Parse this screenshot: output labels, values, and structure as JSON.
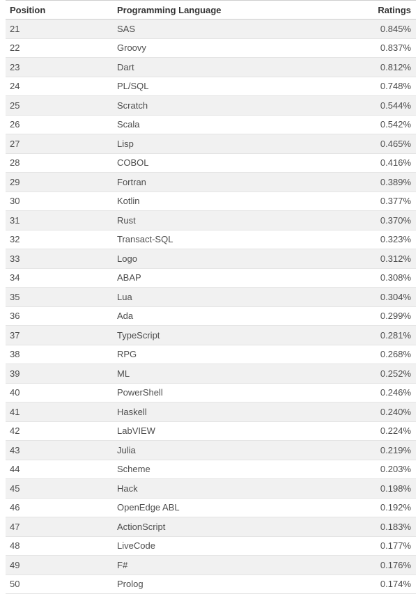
{
  "colors": {
    "row_stripe": "#f1f1f1",
    "row_border": "#e4e4e4",
    "header_border": "#cccccc",
    "header_text": "#333333",
    "body_text": "#4d4d4d",
    "background": "#ffffff"
  },
  "table": {
    "columns": {
      "position": "Position",
      "language": "Programming Language",
      "rating": "Ratings"
    },
    "rows": [
      {
        "position": "21",
        "language": "SAS",
        "rating": "0.845%"
      },
      {
        "position": "22",
        "language": "Groovy",
        "rating": "0.837%"
      },
      {
        "position": "23",
        "language": "Dart",
        "rating": "0.812%"
      },
      {
        "position": "24",
        "language": "PL/SQL",
        "rating": "0.748%"
      },
      {
        "position": "25",
        "language": "Scratch",
        "rating": "0.544%"
      },
      {
        "position": "26",
        "language": "Scala",
        "rating": "0.542%"
      },
      {
        "position": "27",
        "language": "Lisp",
        "rating": "0.465%"
      },
      {
        "position": "28",
        "language": "COBOL",
        "rating": "0.416%"
      },
      {
        "position": "29",
        "language": "Fortran",
        "rating": "0.389%"
      },
      {
        "position": "30",
        "language": "Kotlin",
        "rating": "0.377%"
      },
      {
        "position": "31",
        "language": "Rust",
        "rating": "0.370%"
      },
      {
        "position": "32",
        "language": "Transact-SQL",
        "rating": "0.323%"
      },
      {
        "position": "33",
        "language": "Logo",
        "rating": "0.312%"
      },
      {
        "position": "34",
        "language": "ABAP",
        "rating": "0.308%"
      },
      {
        "position": "35",
        "language": "Lua",
        "rating": "0.304%"
      },
      {
        "position": "36",
        "language": "Ada",
        "rating": "0.299%"
      },
      {
        "position": "37",
        "language": "TypeScript",
        "rating": "0.281%"
      },
      {
        "position": "38",
        "language": "RPG",
        "rating": "0.268%"
      },
      {
        "position": "39",
        "language": "ML",
        "rating": "0.252%"
      },
      {
        "position": "40",
        "language": "PowerShell",
        "rating": "0.246%"
      },
      {
        "position": "41",
        "language": "Haskell",
        "rating": "0.240%"
      },
      {
        "position": "42",
        "language": "LabVIEW",
        "rating": "0.224%"
      },
      {
        "position": "43",
        "language": "Julia",
        "rating": "0.219%"
      },
      {
        "position": "44",
        "language": "Scheme",
        "rating": "0.203%"
      },
      {
        "position": "45",
        "language": "Hack",
        "rating": "0.198%"
      },
      {
        "position": "46",
        "language": "OpenEdge ABL",
        "rating": "0.192%"
      },
      {
        "position": "47",
        "language": "ActionScript",
        "rating": "0.183%"
      },
      {
        "position": "48",
        "language": "LiveCode",
        "rating": "0.177%"
      },
      {
        "position": "49",
        "language": "F#",
        "rating": "0.176%"
      },
      {
        "position": "50",
        "language": "Prolog",
        "rating": "0.174%"
      }
    ]
  }
}
